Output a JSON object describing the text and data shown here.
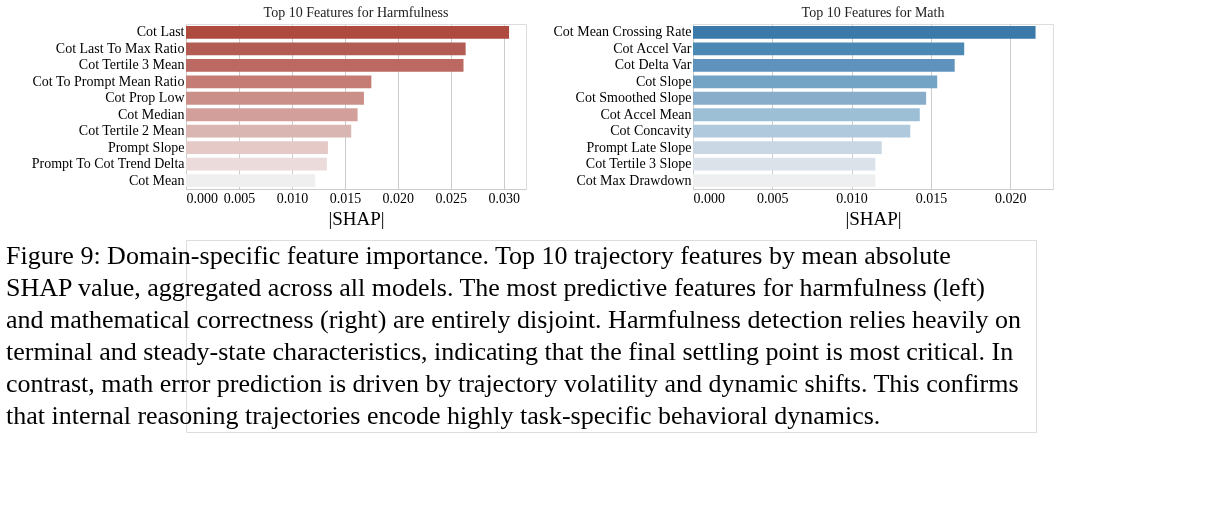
{
  "chart_data": [
    {
      "type": "bar",
      "orientation": "horizontal",
      "title": "Top 10 Features for Harmfulness",
      "xlabel": "|SHAP|",
      "categories": [
        "Cot Last",
        "Cot Last To Max Ratio",
        "Cot Tertile 3 Mean",
        "Cot To Prompt Mean Ratio",
        "Cot Prop Low",
        "Cot Median",
        "Cot Tertile 2 Mean",
        "Prompt Slope",
        "Prompt To Cot Trend Delta",
        "Cot Mean"
      ],
      "values": [
        0.0305,
        0.0264,
        0.0262,
        0.0175,
        0.0168,
        0.0162,
        0.0156,
        0.0134,
        0.0133,
        0.0122
      ],
      "colors": [
        "#ae4a3e",
        "#b35c53",
        "#bb6962",
        "#c47c75",
        "#cb8f89",
        "#d29f9a",
        "#dab6b2",
        "#e4c9c7",
        "#ebdcdb",
        "#efefef"
      ],
      "xlim": [
        0,
        0.0321
      ],
      "xticks": [
        {
          "value": 0,
          "label": "0.000"
        },
        0.005,
        {
          "value": 0.01,
          "label": "0.010"
        },
        0.015,
        {
          "value": 0.02,
          "label": "0.020"
        },
        0.025,
        {
          "value": 0.03,
          "label": "0.030"
        }
      ],
      "grid": "x",
      "annotations": [
        "Figure 9: Domain-specific feature importance.  Top 10 trajectory features by mean absolute",
        "SHAP value, aggregated across all models.  The most predictive features for harmfulness (left)",
        "and mathematical correctness (right) are entirely disjoint. Harmfulness detection relies heavily on",
        "terminal and steady-state characteristics, indicating that the final settling point is most critical.  In",
        "contrast, math error prediction is driven by trajectory volatility and dynamic shifts. This confirms",
        "that internal reasoning trajectories encode highly task-specific behavioral dynamics."
      ]
    },
    {
      "type": "bar",
      "orientation": "horizontal",
      "title": "Top 10 Features for Math",
      "xlabel": "|SHAP|",
      "categories": [
        "Cot Mean Crossing Rate",
        "Cot Accel Var",
        "Cot Delta Var",
        "Cot Slope",
        "Cot Smoothed Slope",
        "Cot Accel Mean",
        "Cot Concavity",
        "Prompt Late Slope",
        "Cot Tertile 3 Slope",
        "Cot Max Drawdown"
      ],
      "values": [
        0.0216,
        0.0171,
        0.0165,
        0.0154,
        0.0147,
        0.0143,
        0.0137,
        0.0119,
        0.0115,
        0.0115
      ],
      "colors": [
        "#3b7aa8",
        "#4b89b4",
        "#5f93be",
        "#73a4c6",
        "#87adcb",
        "#9dbfd6",
        "#b1c9dc",
        "#c8d7e3",
        "#dbe2ea",
        "#eeeff0"
      ],
      "xlim": [
        0,
        0.0227
      ],
      "xticks": [
        {
          "value": 0,
          "label": "0.000"
        },
        0.005,
        {
          "value": 0.01,
          "label": "0.010"
        },
        0.015,
        {
          "value": 0.02,
          "label": "0.020"
        }
      ],
      "grid": "x"
    }
  ]
}
